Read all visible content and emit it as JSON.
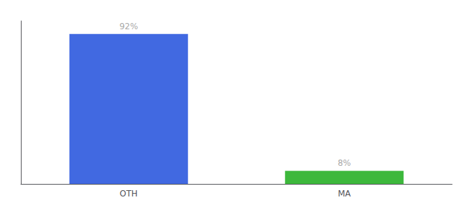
{
  "chart_data": {
    "type": "bar",
    "categories": [
      "OTH",
      "MA"
    ],
    "values": [
      92,
      8
    ],
    "value_labels": [
      "92%",
      "8%"
    ],
    "colors": [
      "#4169e1",
      "#3db83c"
    ],
    "ylim": [
      0,
      100
    ],
    "grid": false,
    "data_labels": true,
    "tick_labels": "x"
  }
}
